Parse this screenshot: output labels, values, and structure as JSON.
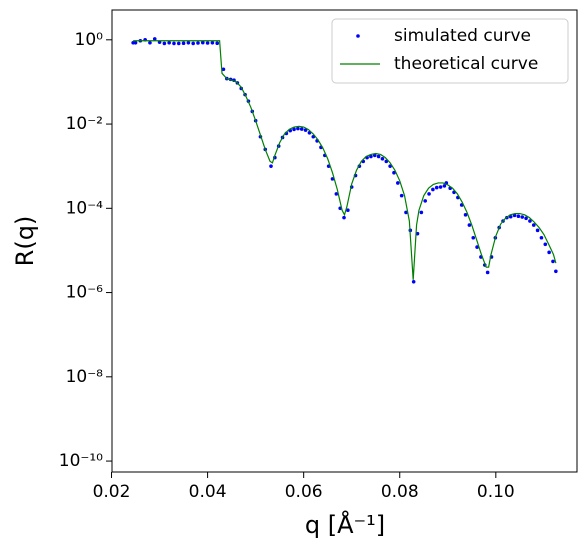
{
  "chart_data": {
    "type": "line",
    "xlabel": "q [Å⁻¹]",
    "ylabel": "R(q)",
    "yscale": "log",
    "legend": "upper right",
    "xlim": [
      0.0201,
      0.1169
    ],
    "ylim": [
      5.5e-11,
      5.1
    ],
    "xticks": [
      0.02,
      0.04,
      0.06,
      0.08,
      {
        "value": 0.1,
        "label": "0.10"
      }
    ],
    "yticks": [
      {
        "value": 1,
        "label": "10⁰"
      },
      {
        "value": 0.01,
        "label": "10⁻²"
      },
      {
        "value": 0.0001,
        "label": "10⁻⁴"
      },
      {
        "value": 1e-06,
        "label": "10⁻⁶"
      },
      {
        "value": 1e-08,
        "label": "10⁻⁸"
      },
      {
        "value": 1e-10,
        "label": "10⁻¹⁰"
      }
    ],
    "series": [
      {
        "name": "simulated curve",
        "color": "#0000ff",
        "style": "markers",
        "x": [
          0.0245,
          0.025,
          0.026,
          0.027,
          0.028,
          0.029,
          0.03,
          0.031,
          0.032,
          0.033,
          0.034,
          0.035,
          0.036,
          0.037,
          0.038,
          0.039,
          0.04,
          0.041,
          0.042,
          0.0433,
          0.044,
          0.0448,
          0.0455,
          0.0462,
          0.047,
          0.0478,
          0.0485,
          0.0493,
          0.05,
          0.051,
          0.052,
          0.0532,
          0.054,
          0.0548,
          0.0556,
          0.0564,
          0.0572,
          0.058,
          0.0588,
          0.0596,
          0.0604,
          0.0612,
          0.062,
          0.0628,
          0.0636,
          0.0644,
          0.0652,
          0.066,
          0.0668,
          0.0676,
          0.0684,
          0.0692,
          0.07,
          0.0708,
          0.0716,
          0.0724,
          0.0732,
          0.074,
          0.0748,
          0.0756,
          0.0764,
          0.0772,
          0.078,
          0.0788,
          0.0796,
          0.0804,
          0.0813,
          0.0822,
          0.0829,
          0.0837,
          0.0845,
          0.0853,
          0.0861,
          0.0869,
          0.0877,
          0.0885,
          0.0893,
          0.0897,
          0.0905,
          0.0913,
          0.0921,
          0.0929,
          0.0937,
          0.0945,
          0.0953,
          0.0961,
          0.0969,
          0.0977,
          0.0983,
          0.0991,
          0.0999,
          0.1007,
          0.1015,
          0.1023,
          0.1031,
          0.1039,
          0.1047,
          0.1055,
          0.1063,
          0.1071,
          0.1079,
          0.1087,
          0.1095,
          0.1103,
          0.1111,
          0.1119,
          0.1125
        ],
        "values": [
          0.85,
          0.85,
          0.95,
          1.0,
          0.85,
          1.05,
          0.88,
          0.82,
          0.85,
          0.82,
          0.82,
          0.83,
          0.85,
          0.82,
          0.84,
          0.86,
          0.84,
          0.85,
          0.83,
          0.2,
          0.12,
          0.115,
          0.11,
          0.095,
          0.07,
          0.05,
          0.035,
          0.02,
          0.012,
          0.005,
          0.0025,
          0.001,
          0.0016,
          0.003,
          0.0048,
          0.006,
          0.007,
          0.0075,
          0.0078,
          0.0076,
          0.0072,
          0.0062,
          0.005,
          0.004,
          0.0028,
          0.0018,
          0.001,
          0.0005,
          0.00022,
          0.0001,
          6e-05,
          9e-05,
          0.00032,
          0.0006,
          0.001,
          0.0013,
          0.0016,
          0.0017,
          0.0018,
          0.0017,
          0.0015,
          0.0013,
          0.001,
          0.0007,
          0.0004,
          0.0002,
          8e-05,
          3e-05,
          1.8e-06,
          2.5e-05,
          8e-05,
          0.00015,
          0.00022,
          0.00028,
          0.00031,
          0.00032,
          0.00034,
          0.0004,
          0.0003,
          0.00024,
          0.00018,
          0.00012,
          7e-05,
          4e-05,
          2e-05,
          1.2e-05,
          7e-06,
          4.5e-06,
          3e-06,
          7e-06,
          2e-05,
          3.5e-05,
          5e-05,
          6e-05,
          6.3e-05,
          6.8e-05,
          6.5e-05,
          6.2e-05,
          5.8e-05,
          5e-05,
          4e-05,
          3e-05,
          2e-05,
          1.4e-05,
          9e-06,
          5.5e-06,
          3.2e-06
        ]
      },
      {
        "name": "theoretical curve",
        "color": "#008000",
        "style": "line",
        "x": [
          0.0245,
          0.03,
          0.035,
          0.04,
          0.0425,
          0.043,
          0.044,
          0.046,
          0.047,
          0.048,
          0.049,
          0.05,
          0.051,
          0.052,
          0.053,
          0.0535,
          0.054,
          0.055,
          0.056,
          0.057,
          0.058,
          0.059,
          0.06,
          0.061,
          0.062,
          0.063,
          0.064,
          0.065,
          0.066,
          0.067,
          0.068,
          0.0685,
          0.069,
          0.07,
          0.071,
          0.072,
          0.073,
          0.074,
          0.075,
          0.076,
          0.077,
          0.078,
          0.079,
          0.08,
          0.081,
          0.082,
          0.0828,
          0.0835,
          0.084,
          0.085,
          0.086,
          0.087,
          0.088,
          0.089,
          0.09,
          0.091,
          0.092,
          0.093,
          0.094,
          0.095,
          0.096,
          0.097,
          0.098,
          0.0985,
          0.099,
          0.1,
          0.101,
          0.102,
          0.103,
          0.104,
          0.105,
          0.106,
          0.107,
          0.108,
          0.109,
          0.11,
          0.111,
          0.112,
          0.1125
        ],
        "values": [
          0.95,
          0.95,
          0.95,
          0.95,
          0.95,
          0.16,
          0.12,
          0.1,
          0.075,
          0.045,
          0.025,
          0.012,
          0.0055,
          0.0025,
          0.0013,
          0.0012,
          0.0018,
          0.0036,
          0.0058,
          0.0075,
          0.0085,
          0.0088,
          0.0085,
          0.0074,
          0.0058,
          0.0042,
          0.0027,
          0.0015,
          0.0007,
          0.00028,
          9e-05,
          7e-05,
          0.00011,
          0.00038,
          0.0008,
          0.0013,
          0.0017,
          0.0019,
          0.002,
          0.0019,
          0.0016,
          0.0012,
          0.0008,
          0.00045,
          0.0002,
          5e-05,
          2e-06,
          4e-05,
          9e-05,
          0.0002,
          0.0003,
          0.00037,
          0.0004,
          0.0004,
          0.00036,
          0.0003,
          0.00022,
          0.00014,
          8e-05,
          4e-05,
          1.8e-05,
          8e-06,
          4e-06,
          4e-06,
          8e-06,
          2.2e-05,
          4.2e-05,
          5.8e-05,
          7e-05,
          7.5e-05,
          7.5e-05,
          7e-05,
          6e-05,
          4.7e-05,
          3.5e-05,
          2.4e-05,
          1.4e-05,
          8e-06,
          5e-06
        ]
      }
    ]
  }
}
